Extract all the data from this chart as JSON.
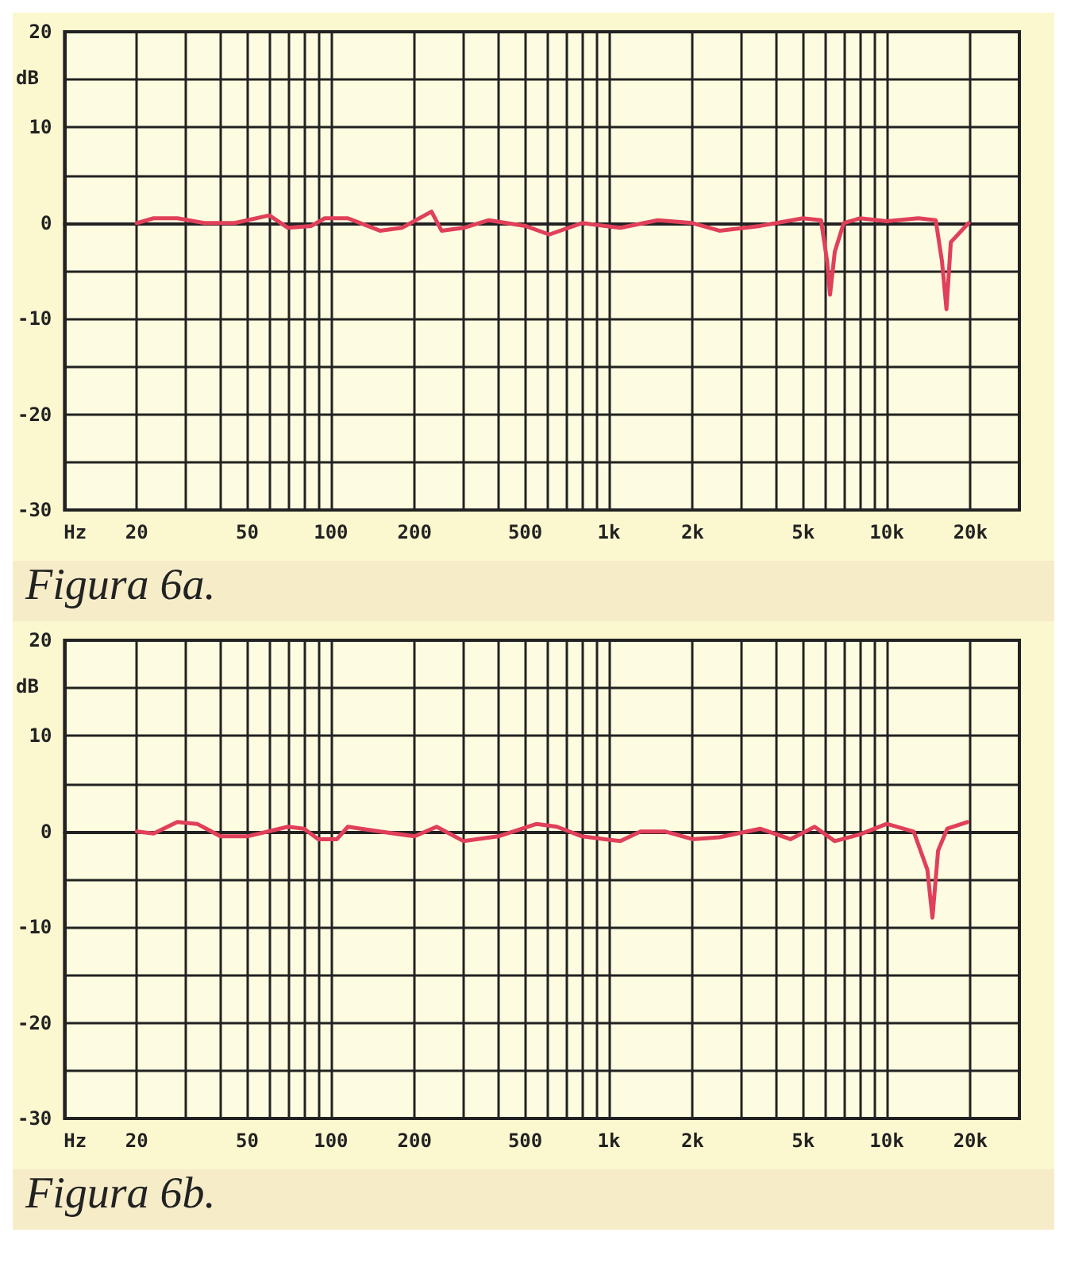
{
  "chart_data": [
    {
      "type": "line",
      "title": "Figura 6a.",
      "xlabel": "Hz",
      "ylabel": "dB",
      "log": "x",
      "grid": true,
      "marker": "none",
      "line_style": "solid",
      "xlim": [
        11,
        30000
      ],
      "ylim": [
        -30,
        20
      ],
      "xticks": [
        20,
        {
          "value": 30,
          "label": null
        },
        {
          "value": 40,
          "label": null
        },
        50,
        {
          "value": 60,
          "label": null
        },
        {
          "value": 70,
          "label": null
        },
        {
          "value": 80,
          "label": null
        },
        {
          "value": 90,
          "label": null
        },
        100,
        200,
        {
          "value": 300,
          "label": null
        },
        {
          "value": 400,
          "label": null
        },
        500,
        {
          "value": 600,
          "label": null
        },
        {
          "value": 700,
          "label": null
        },
        {
          "value": 800,
          "label": null
        },
        {
          "value": 900,
          "label": null
        },
        {
          "value": 1000,
          "label": "1k"
        },
        {
          "value": 2000,
          "label": "2k"
        },
        {
          "value": 3000,
          "label": null
        },
        {
          "value": 4000,
          "label": null
        },
        {
          "value": 5000,
          "label": "5k"
        },
        {
          "value": 6000,
          "label": null
        },
        {
          "value": 7000,
          "label": null
        },
        {
          "value": 8000,
          "label": null
        },
        {
          "value": 9000,
          "label": null
        },
        {
          "value": 10000,
          "label": "10k"
        },
        {
          "value": 20000,
          "label": "20k"
        }
      ],
      "yticks": [
        20,
        {
          "value": 15,
          "label": null
        },
        10,
        {
          "value": 5,
          "label": null
        },
        0,
        {
          "value": -5,
          "label": null
        },
        -10,
        {
          "value": -15,
          "label": null
        },
        -20,
        {
          "value": -25,
          "label": null
        },
        -30
      ],
      "series": [
        {
          "color": "#e0405a",
          "x": [
            20,
            23,
            28,
            35,
            45,
            60,
            70,
            85,
            95,
            115,
            150,
            180,
            230,
            250,
            300,
            370,
            500,
            610,
            800,
            1100,
            1500,
            2000,
            2500,
            3500,
            5000,
            5800,
            6100,
            6250,
            6500,
            7000,
            8000,
            10000,
            13000,
            15000,
            15800,
            16400,
            17000,
            19700
          ],
          "values": [
            0,
            0.5,
            0.5,
            0,
            0,
            0.8,
            -0.5,
            -0.3,
            0.5,
            0.5,
            -0.8,
            -0.5,
            1.2,
            -0.8,
            -0.5,
            0.3,
            -0.3,
            -1.2,
            0,
            -0.5,
            0.3,
            0,
            -0.8,
            -0.3,
            0.5,
            0.3,
            -4,
            -7.5,
            -3,
            0,
            0.5,
            0.2,
            0.5,
            0.3,
            -4,
            -9,
            -2,
            0
          ]
        }
      ]
    },
    {
      "type": "line",
      "title": "Figura 6b.",
      "xlabel": "Hz",
      "ylabel": "dB",
      "log": "x",
      "grid": true,
      "marker": "none",
      "line_style": "solid",
      "xlim": [
        11,
        30000
      ],
      "ylim": [
        -30,
        20
      ],
      "xticks": [
        20,
        {
          "value": 30,
          "label": null
        },
        {
          "value": 40,
          "label": null
        },
        50,
        {
          "value": 60,
          "label": null
        },
        {
          "value": 70,
          "label": null
        },
        {
          "value": 80,
          "label": null
        },
        {
          "value": 90,
          "label": null
        },
        100,
        200,
        {
          "value": 300,
          "label": null
        },
        {
          "value": 400,
          "label": null
        },
        500,
        {
          "value": 600,
          "label": null
        },
        {
          "value": 700,
          "label": null
        },
        {
          "value": 800,
          "label": null
        },
        {
          "value": 900,
          "label": null
        },
        {
          "value": 1000,
          "label": "1k"
        },
        {
          "value": 2000,
          "label": "2k"
        },
        {
          "value": 3000,
          "label": null
        },
        {
          "value": 4000,
          "label": null
        },
        {
          "value": 5000,
          "label": "5k"
        },
        {
          "value": 6000,
          "label": null
        },
        {
          "value": 7000,
          "label": null
        },
        {
          "value": 8000,
          "label": null
        },
        {
          "value": 9000,
          "label": null
        },
        {
          "value": 10000,
          "label": "10k"
        },
        {
          "value": 20000,
          "label": "20k"
        }
      ],
      "yticks": [
        20,
        {
          "value": 15,
          "label": null
        },
        10,
        {
          "value": 5,
          "label": null
        },
        0,
        {
          "value": -5,
          "label": null
        },
        -10,
        {
          "value": -15,
          "label": null
        },
        -20,
        {
          "value": -25,
          "label": null
        },
        -30
      ],
      "series": [
        {
          "color": "#e0405a",
          "x": [
            20,
            23,
            28,
            33,
            40,
            50,
            70,
            80,
            90,
            105,
            115,
            150,
            200,
            240,
            300,
            400,
            550,
            650,
            800,
            1100,
            1300,
            1600,
            2000,
            2500,
            3500,
            4500,
            5500,
            6500,
            8000,
            10000,
            12500,
            14000,
            14600,
            15300,
            16500,
            19500
          ],
          "values": [
            0,
            -0.2,
            1,
            0.8,
            -0.5,
            -0.5,
            0.5,
            0.3,
            -0.8,
            -0.8,
            0.5,
            0,
            -0.5,
            0.5,
            -1,
            -0.5,
            0.8,
            0.5,
            -0.5,
            -1,
            0,
            0,
            -0.8,
            -0.6,
            0.3,
            -0.8,
            0.5,
            -1,
            -0.3,
            0.8,
            0,
            -4,
            -9,
            -2,
            0.3,
            1
          ]
        }
      ]
    }
  ]
}
